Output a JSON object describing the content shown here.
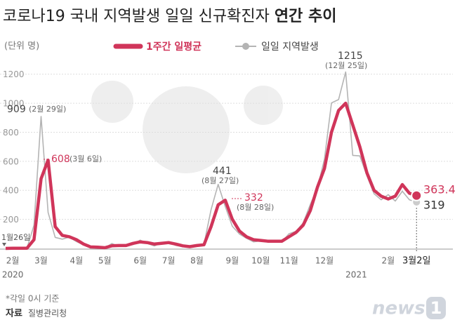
{
  "chart_data": {
    "type": "line",
    "title": "코로나19 국내 지역발생 일일 신규확진자",
    "title_emphasis": "연간 추이",
    "unit": "(단위 명)",
    "categories": [
      null,
      "2월",
      null,
      null,
      null,
      "3월",
      null,
      null,
      null,
      null,
      "4월",
      null,
      null,
      null,
      "5월",
      null,
      null,
      null,
      null,
      "6월",
      null,
      null,
      null,
      "7월",
      null,
      null,
      null,
      "8월",
      null,
      null,
      null,
      null,
      "9월",
      null,
      null,
      null,
      "10월",
      null,
      null,
      null,
      "11월",
      null,
      null,
      null,
      null,
      "12월",
      null,
      null,
      null,
      null,
      null,
      null,
      null,
      null,
      "2월",
      null,
      null,
      null,
      "3월2일"
    ],
    "x_year_labels": [
      "2020",
      "2021"
    ],
    "series": [
      {
        "name": "1주간 일평균",
        "color": "#d0355a",
        "values": [
          0,
          1,
          1,
          1,
          60,
          480,
          608,
          150,
          90,
          80,
          60,
          30,
          10,
          8,
          5,
          18,
          20,
          20,
          35,
          45,
          40,
          30,
          35,
          40,
          30,
          18,
          12,
          20,
          25,
          150,
          300,
          332,
          200,
          120,
          80,
          60,
          55,
          50,
          50,
          50,
          80,
          110,
          160,
          260,
          420,
          550,
          800,
          950,
          1000,
          850,
          700,
          520,
          400,
          360,
          340,
          360,
          440,
          380,
          363.4
        ]
      },
      {
        "name": "일일 지역발생",
        "color": "#b4b4b4",
        "values": [
          0,
          1,
          0,
          0,
          160,
          909,
          248,
          76,
          64,
          78,
          47,
          25,
          8,
          10,
          3,
          34,
          13,
          23,
          27,
          57,
          34,
          17,
          40,
          43,
          21,
          12,
          8,
          23,
          28,
          267,
          441,
          289,
          152,
          99,
          70,
          45,
          52,
          54,
          47,
          46,
          101,
          118,
          176,
          302,
          413,
          615,
          1002,
          1025,
          1215,
          641,
          637,
          500,
          377,
          335,
          370,
          326,
          394,
          335,
          319
        ]
      }
    ],
    "ylim": [
      0,
      1300
    ],
    "yticks": [
      200,
      400,
      600,
      800,
      1000,
      1200
    ],
    "grid": true,
    "annotations": [
      {
        "label": "909",
        "note": "(2월 29일)"
      },
      {
        "label": "608",
        "note": "(3월 6일)"
      },
      {
        "label": "441",
        "note": "(8월 27일)"
      },
      {
        "label": "332",
        "note": "(8월 28일)"
      },
      {
        "label": "1215",
        "note": "(12월 25일)"
      },
      {
        "label": "363.4"
      },
      {
        "label": "319"
      },
      {
        "label": "1월26일"
      }
    ],
    "footnote": "*각일 0시 기준",
    "source_label": "자료",
    "source": "질병관리청",
    "logo": {
      "text": "news",
      "number": "1"
    }
  }
}
